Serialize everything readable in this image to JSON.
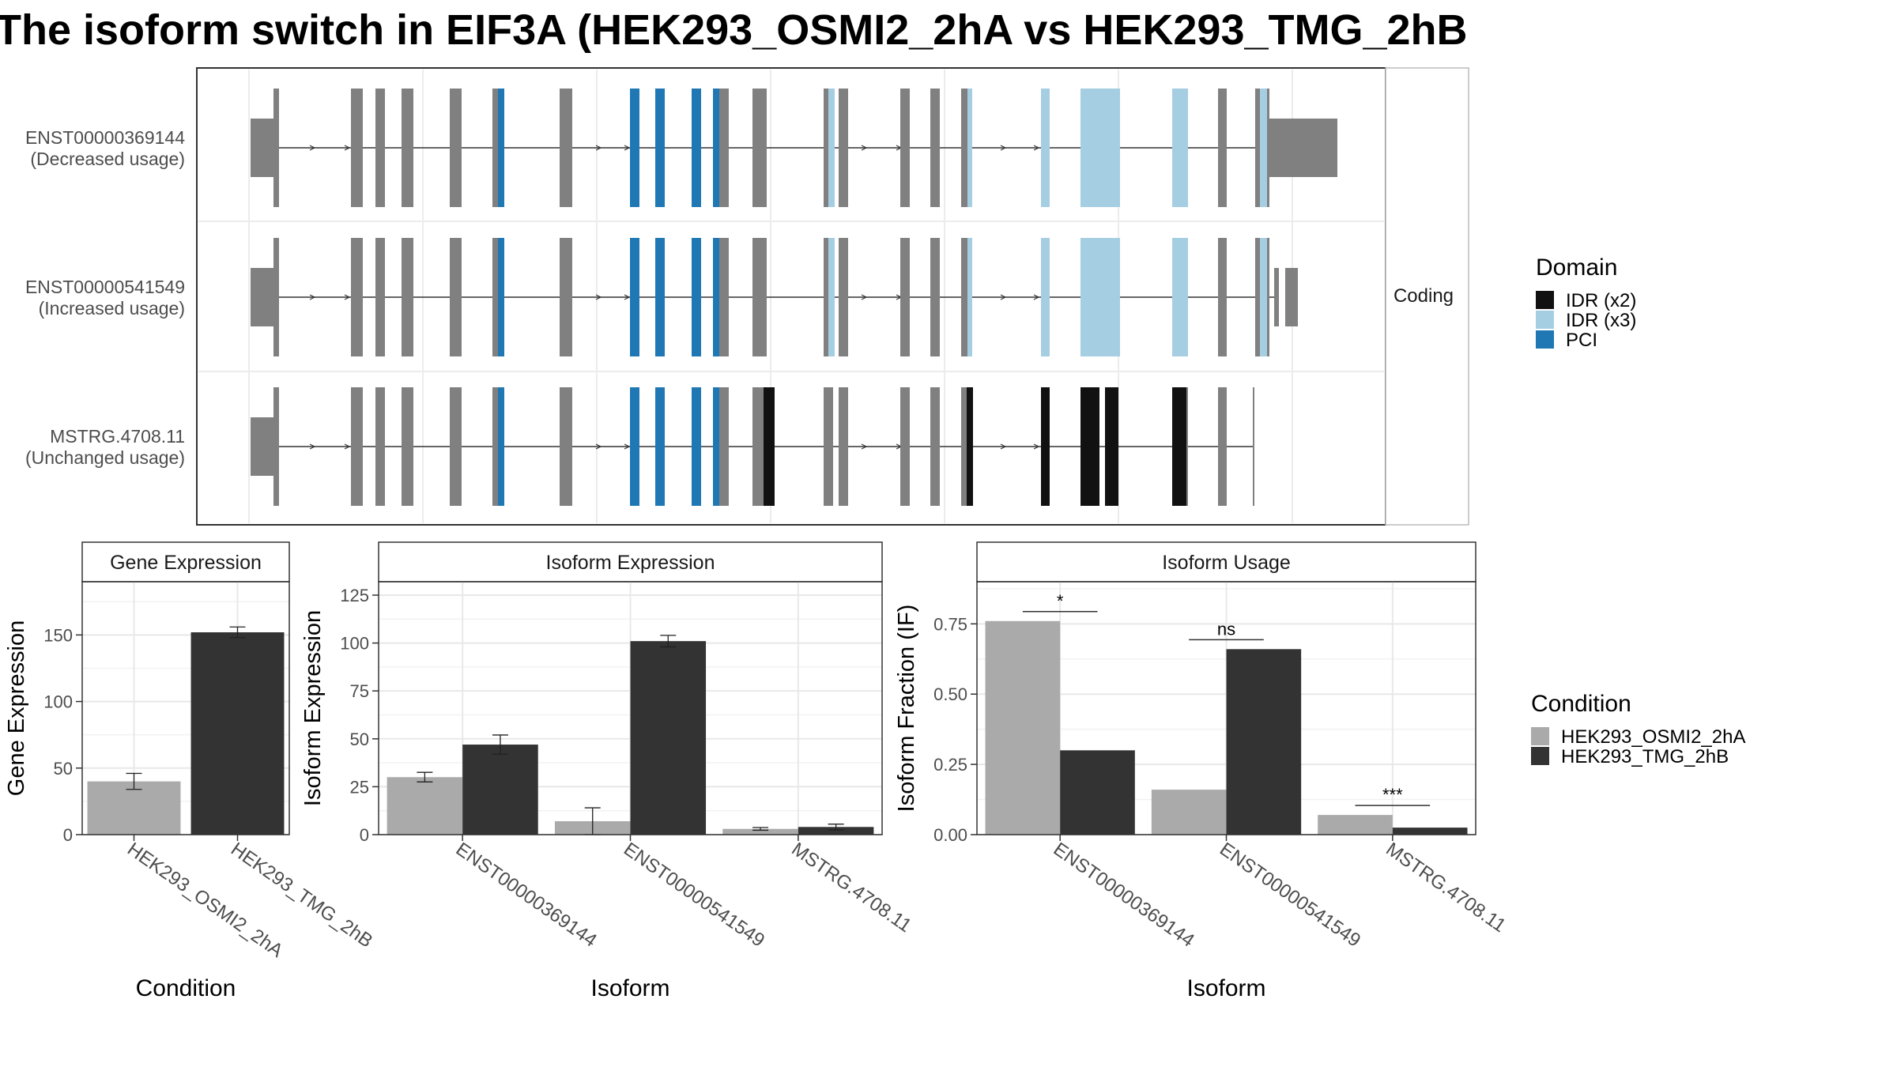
{
  "title": "The isoform switch in EIF3A (HEK293_OSMI2_2hA vs HEK293_TMG_2hB",
  "colors": {
    "cond_a": "#aaaaaa",
    "cond_b": "#333333",
    "idr_x2": "#111111",
    "idr_x3": "#a6cee3",
    "pci": "#1f78b4",
    "exon": "#808080"
  },
  "transcripts": [
    {
      "line1": "ENST00000369144",
      "line2": "(Decreased usage)"
    },
    {
      "line1": "ENST00000541549",
      "line2": "(Increased usage)"
    },
    {
      "line1": "MSTRG.4708.11",
      "line2": "(Unchanged usage)"
    }
  ],
  "facet_label": "Coding",
  "domain_legend": {
    "title": "Domain",
    "items": [
      {
        "label": "IDR (x2)",
        "color": "#111111"
      },
      {
        "label": "IDR (x3)",
        "color": "#a6cee3"
      },
      {
        "label": "PCI",
        "color": "#1f78b4"
      }
    ]
  },
  "condition_legend": {
    "title": "Condition",
    "items": [
      {
        "label": "HEK293_OSMI2_2hA",
        "color": "#aaaaaa"
      },
      {
        "label": "HEK293_TMG_2hB",
        "color": "#333333"
      }
    ]
  },
  "chart_data": [
    {
      "type": "bar",
      "title": "Gene Expression",
      "xlabel": "Condition",
      "ylabel": "Gene Expression",
      "categories": [
        "HEK293_OSMI2_2hA",
        "HEK293_TMG_2hB"
      ],
      "values": [
        40,
        152
      ],
      "errors": [
        6,
        4
      ],
      "ylim": [
        0,
        190
      ],
      "yticks": [
        0,
        50,
        100,
        150
      ]
    },
    {
      "type": "bar",
      "title": "Isoform Expression",
      "xlabel": "Isoform",
      "ylabel": "Isoform Expression",
      "categories": [
        "ENST00000369144",
        "ENST00000541549",
        "MSTRG.4708.11"
      ],
      "series": [
        {
          "name": "HEK293_OSMI2_2hA",
          "values": [
            30,
            7,
            3
          ],
          "errors": [
            2.5,
            7,
            0.7
          ]
        },
        {
          "name": "HEK293_TMG_2hB",
          "values": [
            47,
            101,
            4
          ],
          "errors": [
            5,
            3,
            1.5
          ]
        }
      ],
      "ylim": [
        0,
        132
      ],
      "yticks": [
        0,
        25,
        50,
        75,
        100,
        125
      ]
    },
    {
      "type": "bar",
      "title": "Isoform Usage",
      "xlabel": "Isoform",
      "ylabel": "Isoform Fraction (IF)",
      "categories": [
        "ENST00000369144",
        "ENST00000541549",
        "MSTRG.4708.11"
      ],
      "series": [
        {
          "name": "HEK293_OSMI2_2hA",
          "values": [
            0.76,
            0.16,
            0.07
          ]
        },
        {
          "name": "HEK293_TMG_2hB",
          "values": [
            0.3,
            0.66,
            0.025
          ]
        }
      ],
      "significance": [
        "*",
        "ns",
        "***"
      ],
      "ylim": [
        0,
        0.9
      ],
      "yticks": [
        "0.00",
        "0.25",
        "0.50",
        "0.75"
      ]
    }
  ]
}
